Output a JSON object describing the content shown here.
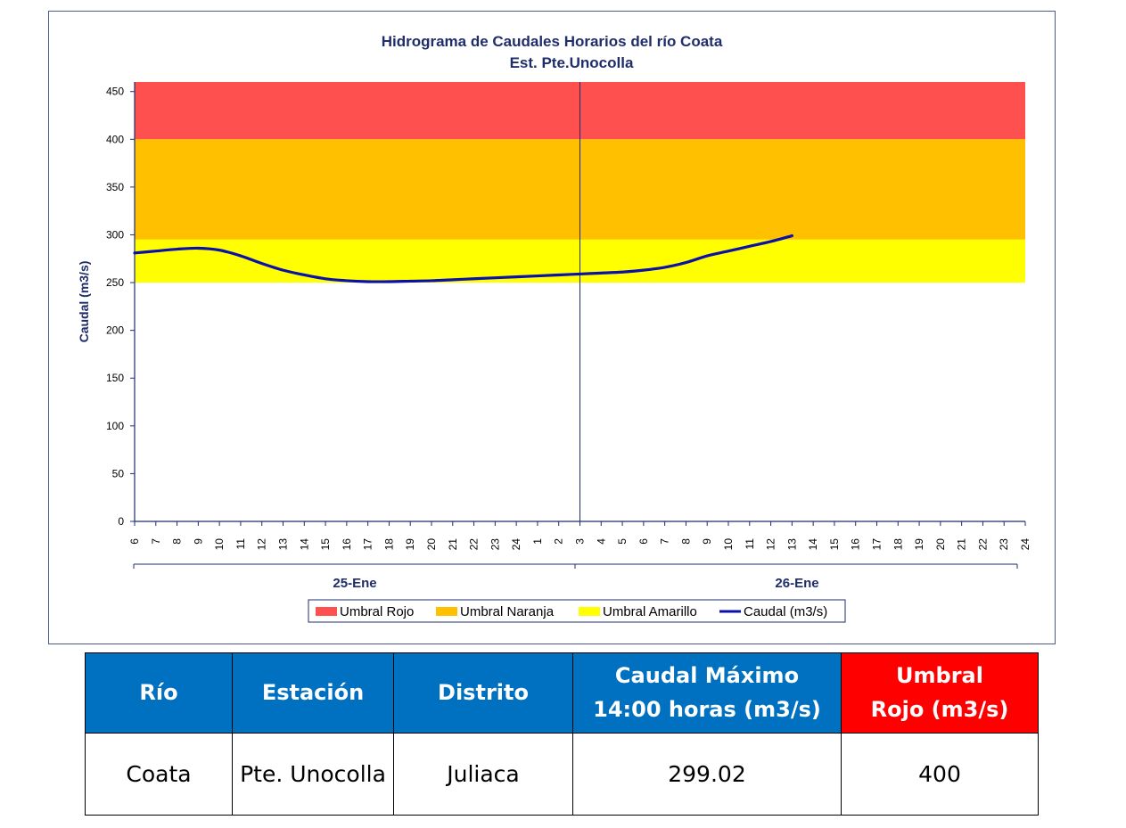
{
  "chart_data": {
    "type": "line",
    "title": "Hidrograma de Caudales Horarios del río Coata",
    "subtitle": "Est. Pte.Unocolla",
    "xlabel": "",
    "ylabel": "Caudal  (m3/s)",
    "ylim": [
      0,
      460
    ],
    "yticks": [
      0,
      50,
      100,
      150,
      200,
      250,
      300,
      350,
      400,
      450
    ],
    "x_hour_labels": [
      "6",
      "7",
      "8",
      "9",
      "10",
      "11",
      "12",
      "13",
      "14",
      "15",
      "16",
      "17",
      "18",
      "19",
      "20",
      "21",
      "22",
      "23",
      "24",
      "1",
      "2",
      "3",
      "4",
      "5",
      "6",
      "7",
      "8",
      "9",
      "10",
      "11",
      "12",
      "13",
      "14",
      "15",
      "16",
      "17",
      "18",
      "19",
      "20",
      "21",
      "22",
      "23",
      "24"
    ],
    "date_groups": [
      {
        "label": "25-Ene",
        "from_index": 0,
        "to_index": 20
      },
      {
        "label": "26-Ene",
        "from_index": 21,
        "to_index": 42
      }
    ],
    "thresholds": [
      {
        "name": "Umbral Rojo",
        "from": 400,
        "to": 460,
        "color": "#ff5050"
      },
      {
        "name": "Umbral Naranja",
        "from": 295,
        "to": 400,
        "color": "#ffc000"
      },
      {
        "name": "Umbral Amarillo",
        "from": 250,
        "to": 295,
        "color": "#ffff00"
      }
    ],
    "series": [
      {
        "name": "Caudal (m3/s)",
        "color": "#0a10a8",
        "values": [
          281,
          283,
          285,
          286,
          284,
          278,
          270,
          263,
          258,
          254,
          252,
          251,
          251,
          251.5,
          252,
          253,
          254,
          255,
          256,
          257,
          258,
          259,
          260,
          261,
          263,
          266,
          271,
          278,
          283,
          288,
          293,
          299.02
        ]
      }
    ],
    "grid": false,
    "legend_position": "bottom"
  },
  "table": {
    "headers": [
      "Río",
      "Estación",
      "Distrito",
      "Caudal Máximo\n14:00 horas (m3/s)",
      "Umbral\nRojo (m3/s)"
    ],
    "row": [
      "Coata",
      "Pte. Unocolla",
      "Juliaca",
      "299.02",
      "400"
    ]
  }
}
